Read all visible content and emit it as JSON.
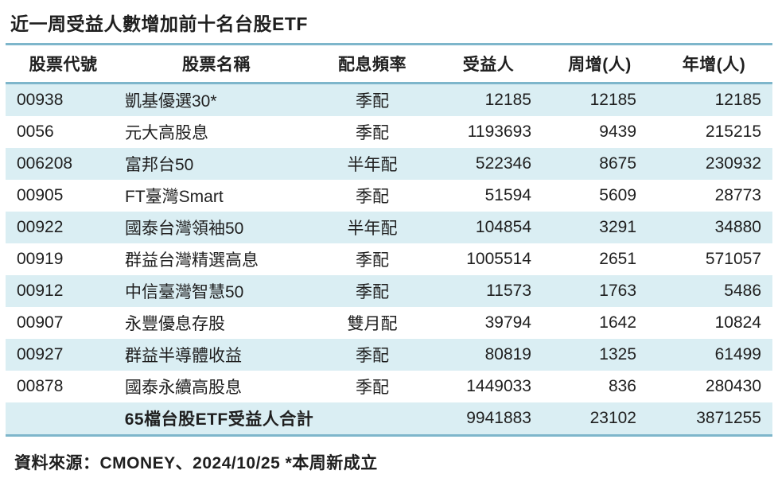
{
  "colors": {
    "stripe_row": "#daeef3",
    "rule_line": "#7eb6cb",
    "text": "#1f1f1f",
    "background": "#ffffff"
  },
  "chart_data": {
    "type": "table",
    "title": "近一周受益人數增加前十名台股ETF",
    "columns": [
      "股票代號",
      "股票名稱",
      "配息頻率",
      "受益人",
      "周增(人)",
      "年增(人)"
    ],
    "rows": [
      [
        "00938",
        "凱基優選30*",
        "季配",
        "12185",
        "12185",
        "12185"
      ],
      [
        "0056",
        "元大高股息",
        "季配",
        "1193693",
        "9439",
        "215215"
      ],
      [
        "006208",
        "富邦台50",
        "半年配",
        "522346",
        "8675",
        "230932"
      ],
      [
        "00905",
        "FT臺灣Smart",
        "季配",
        "51594",
        "5609",
        "28773"
      ],
      [
        "00922",
        "國泰台灣領袖50",
        "半年配",
        "104854",
        "3291",
        "34880"
      ],
      [
        "00919",
        "群益台灣精選高息",
        "季配",
        "1005514",
        "2651",
        "571057"
      ],
      [
        "00912",
        "中信臺灣智慧50",
        "季配",
        "11573",
        "1763",
        "5486"
      ],
      [
        "00907",
        "永豐優息存股",
        "雙月配",
        "39794",
        "1642",
        "10824"
      ],
      [
        "00927",
        "群益半導體收益",
        "季配",
        "80819",
        "1325",
        "61499"
      ],
      [
        "00878",
        "國泰永續高股息",
        "季配",
        "1449033",
        "836",
        "280430"
      ]
    ],
    "total_row": {
      "label": "65檔台股ETF受益人合計",
      "values": [
        "9941883",
        "23102",
        "3871255"
      ]
    },
    "source_note": "資料來源：CMONEY、2024/10/25 *本周新成立",
    "layout": {
      "stripe_pattern": "odd-rows-blue",
      "numeric_alignment": "right",
      "header_alignment": "center"
    }
  }
}
